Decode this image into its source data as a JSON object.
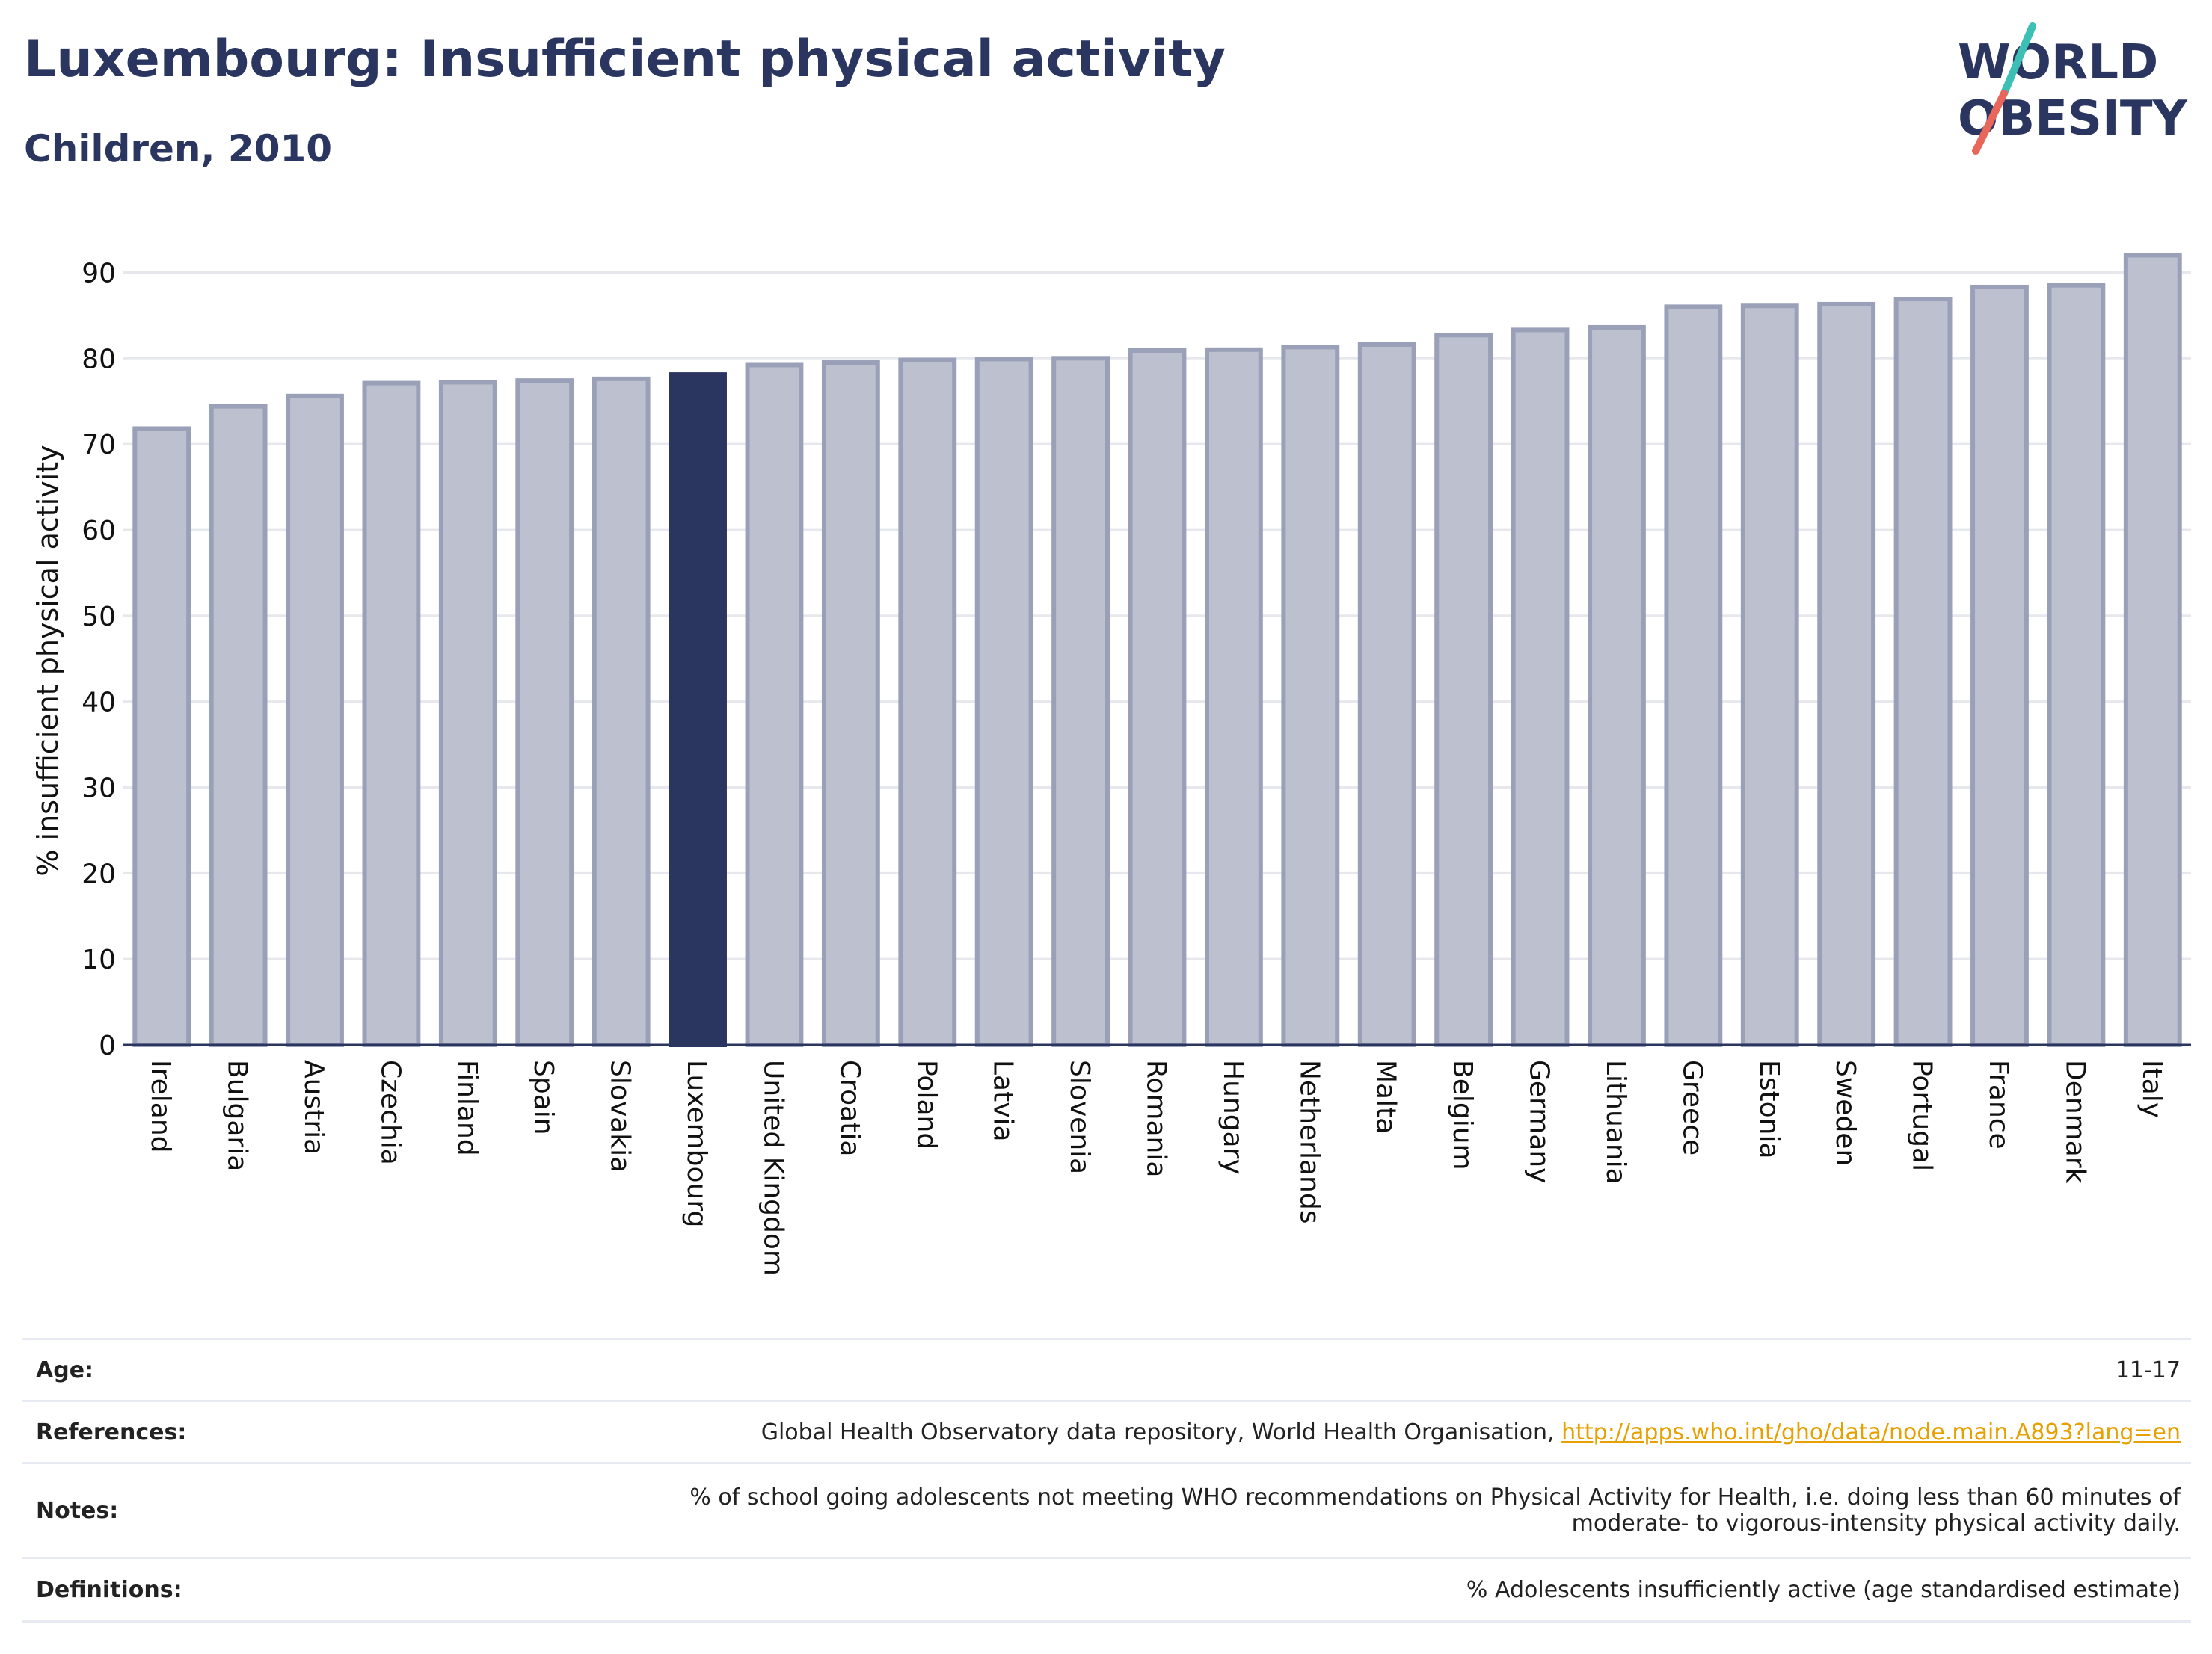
{
  "header": {
    "title": "Luxembourg: Insufficient physical activity",
    "subtitle": "Children, 2010"
  },
  "logo": {
    "line1": "WORLD",
    "line2": "OBESITY",
    "colors": {
      "text": "#2a3560",
      "slash_teal": "#3cbfb4",
      "slash_red": "#e8675a"
    }
  },
  "chart_data": {
    "type": "bar",
    "ylabel": "% insufficient physical activity",
    "xlabel": "",
    "ylim": [
      0,
      93
    ],
    "yticks": [
      0,
      10,
      20,
      30,
      40,
      50,
      60,
      70,
      80,
      90
    ],
    "grid": true,
    "highlight": "Luxembourg",
    "colors": {
      "bar": "#bcc0cf",
      "bar_edge": "#9aa0b8",
      "highlight": "#2a3560",
      "grid": "#e6e8ee",
      "axis": "#2a3560"
    },
    "categories": [
      "Ireland",
      "Bulgaria",
      "Austria",
      "Czechia",
      "Finland",
      "Spain",
      "Slovakia",
      "Luxembourg",
      "United Kingdom",
      "Croatia",
      "Poland",
      "Latvia",
      "Slovenia",
      "Romania",
      "Hungary",
      "Netherlands",
      "Malta",
      "Belgium",
      "Germany",
      "Lithuania",
      "Greece",
      "Estonia",
      "Sweden",
      "Portugal",
      "France",
      "Denmark",
      "Italy"
    ],
    "values": [
      71.8,
      74.4,
      75.6,
      77.1,
      77.2,
      77.4,
      77.6,
      78.1,
      79.2,
      79.5,
      79.8,
      79.9,
      80.0,
      80.9,
      81.0,
      81.3,
      81.6,
      82.7,
      83.3,
      83.6,
      86.0,
      86.1,
      86.3,
      86.9,
      88.3,
      88.5,
      92.0
    ]
  },
  "info_table": [
    {
      "label": "Age:",
      "value": "11-17"
    },
    {
      "label": "References:",
      "value": "Global Health Observatory data repository, World Health Organisation, ",
      "link": "http://apps.who.int/gho/data/node.main.A893?lang=en"
    },
    {
      "label": "Notes:",
      "value": "% of school going adolescents not meeting WHO recommendations on Physical Activity for Health, i.e. doing less than 60 minutes of",
      "value_line2": "moderate- to vigorous-intensity physical activity daily."
    },
    {
      "label": "Definitions:",
      "value": "% Adolescents insufficiently active (age standardised estimate)"
    }
  ]
}
